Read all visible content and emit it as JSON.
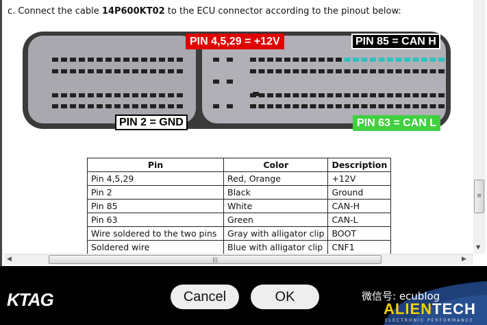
{
  "instruction": {
    "prefix": "c.   Connect the cable ",
    "cable": "14P600KT02",
    "suffix": " to the ECU connector according to the pinout below:"
  },
  "callouts": {
    "power": "PIN 4,5,29 = +12V",
    "canh": "PIN 85 = CAN H",
    "gnd": "PIN 2 = GND",
    "canl": "PIN 63 = CAN L"
  },
  "colors": {
    "power": "#e00000",
    "canh": "#000000",
    "gnd": "#000000",
    "canl": "#40d040"
  },
  "table": {
    "headers": [
      "Pin",
      "Color",
      "Description"
    ],
    "rows": [
      [
        "Pin 4,5,29",
        "Red, Orange",
        "+12V"
      ],
      [
        "Pin 2",
        "Black",
        "Ground"
      ],
      [
        "Pin 85",
        "White",
        "CAN-H"
      ],
      [
        "Pin 63",
        "Green",
        "CAN-L"
      ],
      [
        "Wire soldered to the two pins",
        "Gray with alligator clip",
        "BOOT"
      ],
      [
        "Soldered wire",
        "Blue with alligator clip",
        "CNF1"
      ]
    ]
  },
  "buttons": {
    "cancel": "Cancel",
    "ok": "OK"
  },
  "brand": {
    "ktag": "KTAG",
    "watermark": "微信号: ecublog",
    "alientech_a": "ALIEN",
    "alientech_b": "TECH",
    "alientech_sub": "ELECTRONIC      PERFORMANCE"
  }
}
